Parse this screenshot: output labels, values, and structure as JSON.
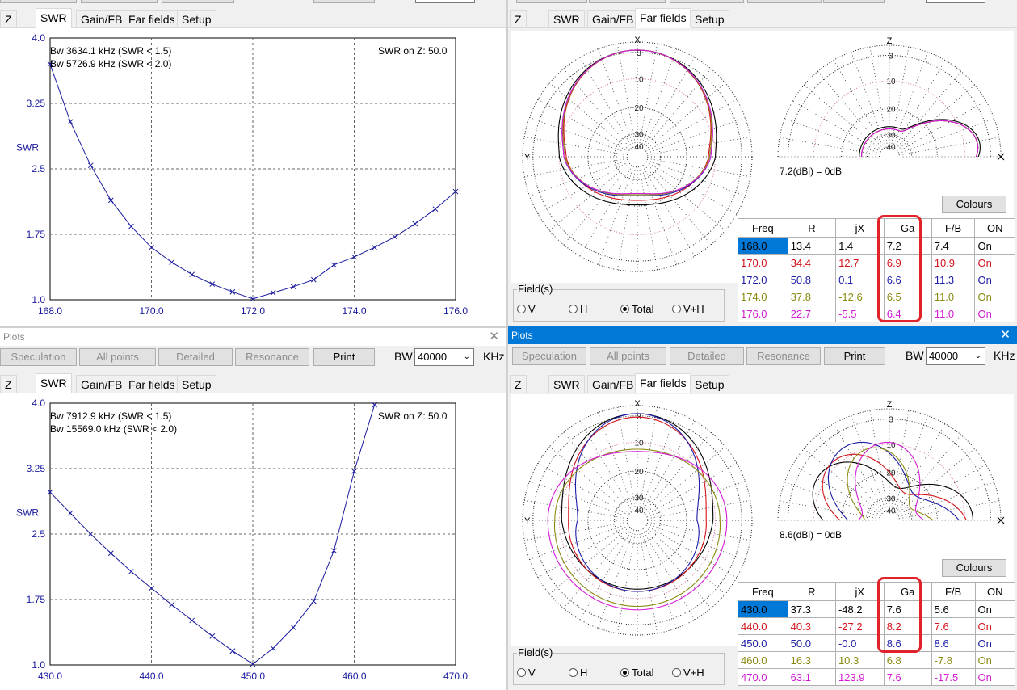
{
  "window_title": "Plots",
  "toolbar": {
    "speculation": "Speculation",
    "all_points": "All points",
    "detailed": "Detailed",
    "resonance": "Resonance",
    "print": "Print",
    "bw_label": "BW",
    "bw_value": "40000",
    "unit": "KHz"
  },
  "tabs": [
    "Z",
    "SWR",
    "Gain/FB",
    "Far fields",
    "Setup"
  ],
  "swr_top": {
    "bw1": "Bw 3634.1 kHz (SWR < 1.5)",
    "bw2": "Bw 5726.9 kHz (SWR < 2.0)",
    "z_label": "SWR on Z: 50.0",
    "ylabel": "SWR",
    "yticks": [
      "4.0",
      "3.25",
      "2.5",
      "1.75",
      "1.0"
    ],
    "xticks": [
      "168.0",
      "170.0",
      "172.0",
      "174.0",
      "176.0"
    ]
  },
  "swr_bottom": {
    "bw1": "Bw 7912.9 kHz (SWR < 1.5)",
    "bw2": "Bw 15569.0 kHz (SWR < 2.0)",
    "z_label": "SWR on Z: 50.0",
    "ylabel": "SWR",
    "yticks": [
      "4.0",
      "3.25",
      "2.5",
      "1.75",
      "1.0"
    ],
    "xticks": [
      "430.0",
      "440.0",
      "450.0",
      "460.0",
      "470.0"
    ]
  },
  "chart_data": [
    {
      "type": "line",
      "xlabel": "",
      "ylabel": "SWR",
      "xlim": [
        168.0,
        176.0
      ],
      "ylim": [
        1.0,
        4.0
      ],
      "series": [
        {
          "x": [
            168.0,
            168.4,
            168.8,
            169.2,
            169.6,
            170.0,
            170.4,
            170.8,
            171.2,
            171.6,
            172.0,
            172.4,
            172.8,
            173.2,
            173.6,
            174.0,
            174.4,
            174.8,
            175.2,
            175.6,
            176.0
          ],
          "values": [
            3.7,
            3.04,
            2.54,
            2.14,
            1.84,
            1.6,
            1.43,
            1.29,
            1.18,
            1.09,
            1.01,
            1.08,
            1.15,
            1.23,
            1.4,
            1.49,
            1.6,
            1.72,
            1.87,
            2.04,
            2.24
          ]
        }
      ]
    },
    {
      "type": "line",
      "xlabel": "",
      "ylabel": "SWR",
      "xlim": [
        430.0,
        470.0
      ],
      "ylim": [
        1.0,
        4.0
      ],
      "series": [
        {
          "x": [
            430.0,
            432.0,
            434.0,
            436.0,
            438.0,
            440.0,
            442.0,
            444.0,
            446.0,
            448.0,
            450.0,
            452.0,
            454.0,
            456.0,
            458.0,
            460.0,
            462.0
          ],
          "values": [
            2.98,
            2.74,
            2.5,
            2.28,
            2.07,
            1.88,
            1.69,
            1.51,
            1.33,
            1.16,
            1.01,
            1.19,
            1.43,
            1.73,
            2.31,
            3.22,
            3.98
          ]
        }
      ]
    }
  ],
  "farfield_top": {
    "ref_label": "7.2(dBi) = 0dB",
    "colours_label": "Colours",
    "fields_label": "Field(s)",
    "radio": [
      "V",
      "H",
      "Total",
      "V+H"
    ],
    "polar_ticks": [
      "3",
      "10",
      "20",
      "30",
      "40"
    ],
    "axis_x": "X",
    "axis_y": "Y",
    "axis_z": "Z",
    "headers": [
      "Freq",
      "R",
      "jX",
      "Ga",
      "F/B",
      "ON"
    ],
    "rows": [
      {
        "freq": "168.0",
        "r": "13.4",
        "jx": "1.4",
        "ga": "7.2",
        "fb": "7.4",
        "on": "On",
        "color": "#000000"
      },
      {
        "freq": "170.0",
        "r": "34.4",
        "jx": "12.7",
        "ga": "6.9",
        "fb": "10.9",
        "on": "On",
        "color": "#d4141b"
      },
      {
        "freq": "172.0",
        "r": "50.8",
        "jx": "0.1",
        "ga": "6.6",
        "fb": "11.3",
        "on": "On",
        "color": "#1c1ca8"
      },
      {
        "freq": "174.0",
        "r": "37.8",
        "jx": "-12.6",
        "ga": "6.5",
        "fb": "11.0",
        "on": "On",
        "color": "#8a8a10"
      },
      {
        "freq": "176.0",
        "r": "22.7",
        "jx": "-5.5",
        "ga": "6.4",
        "fb": "11.0",
        "on": "On",
        "color": "#d41bd4"
      }
    ]
  },
  "farfield_bottom": {
    "ref_label": "8.6(dBi) = 0dB",
    "colours_label": "Colours",
    "fields_label": "Field(s)",
    "radio": [
      "V",
      "H",
      "Total",
      "V+H"
    ],
    "polar_ticks": [
      "3",
      "10",
      "20",
      "30",
      "40"
    ],
    "axis_x": "X",
    "axis_y": "Y",
    "axis_z": "Z",
    "headers": [
      "Freq",
      "R",
      "jX",
      "Ga",
      "F/B",
      "ON"
    ],
    "rows": [
      {
        "freq": "430.0",
        "r": "37.3",
        "jx": "-48.2",
        "ga": "7.6",
        "fb": "5.6",
        "on": "On",
        "color": "#000000"
      },
      {
        "freq": "440.0",
        "r": "40.3",
        "jx": "-27.2",
        "ga": "8.2",
        "fb": "7.6",
        "on": "On",
        "color": "#d4141b"
      },
      {
        "freq": "450.0",
        "r": "50.0",
        "jx": "-0.0",
        "ga": "8.6",
        "fb": "8.6",
        "on": "On",
        "color": "#1c1ca8"
      },
      {
        "freq": "460.0",
        "r": "16.3",
        "jx": "10.3",
        "ga": "6.8",
        "fb": "-7.8",
        "on": "On",
        "color": "#8a8a10"
      },
      {
        "freq": "470.0",
        "r": "63.1",
        "jx": "123.9",
        "ga": "7.6",
        "fb": "-17.5",
        "on": "On",
        "color": "#d41bd4"
      }
    ]
  },
  "colors": {
    "swr_line": "#1a1a9e",
    "accent": "#0078d7",
    "highlight": "#e0222b"
  }
}
